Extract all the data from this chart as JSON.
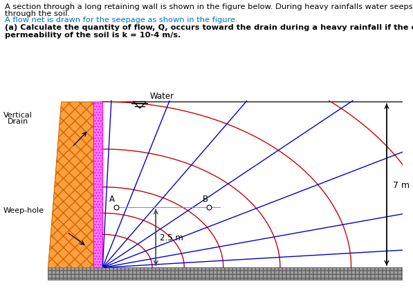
{
  "fig_bg": "#ffffff",
  "wall_fill": "#FFA040",
  "wall_edge": "#CC6600",
  "drain_fill": "#FF80FF",
  "drain_edge": "#FF00FF",
  "ground_fill": "#A0A0A0",
  "ground_edge": "#404040",
  "flow_color": "#0000CC",
  "equip_color": "#CC0000",
  "text_color": "#000000",
  "blue_text_color": "#0070C0",
  "line1": "A section through a long retaining wall is shown in the figure below. During heavy rainfalls water seeps",
  "line2": "through the soil.",
  "line3": "A flow net is drawn for the seepage as shown in the figure.",
  "line4": "(a) Calculate the quantity of flow, Q, occurs toward the drain during a heavy rainfall if the coefficient of",
  "line5": "permeability of the soil is k = 10-4 m/s.",
  "label_A": "A",
  "label_B": "B",
  "label_water": "Water",
  "label_vertical": "Vertical",
  "label_drain": "Drain",
  "label_weephole": "Weep-hole",
  "label_25m": "2.5 m",
  "label_7m": "7 m",
  "equip_radii": [
    1.4,
    2.3,
    3.4,
    5.0,
    7.0,
    9.5
  ],
  "flow_angles_deg": [
    88,
    75,
    60,
    45,
    30,
    15,
    5
  ]
}
